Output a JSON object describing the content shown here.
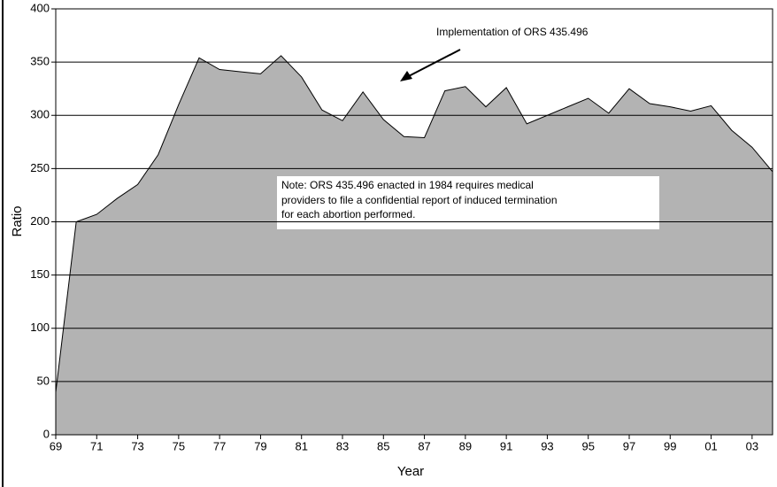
{
  "chart_data": {
    "type": "area",
    "categories": [
      "69",
      null,
      "71",
      null,
      "73",
      null,
      "75",
      null,
      "77",
      null,
      "79",
      null,
      "81",
      null,
      "83",
      null,
      "85",
      null,
      "87",
      null,
      "89",
      null,
      "91",
      null,
      "93",
      null,
      "95",
      null,
      "97",
      null,
      "99",
      null,
      "01",
      null,
      "03",
      null
    ],
    "values": [
      40,
      200,
      207,
      222,
      235,
      263,
      310,
      354,
      343,
      341,
      339,
      356,
      336,
      305,
      295,
      322,
      296,
      280,
      279,
      323,
      327,
      308,
      326,
      292,
      300,
      308,
      316,
      302,
      325,
      311,
      308,
      304,
      309,
      286,
      270,
      247
    ],
    "color": "#b3b3b3",
    "ylim": [
      0,
      400
    ],
    "yticks": [
      0,
      50,
      100,
      150,
      200,
      250,
      300,
      350,
      400
    ],
    "grid": true,
    "xlabel": "Year",
    "ylabel": "Ratio",
    "annotation": "Implementation of ORS 435.496",
    "note": [
      "Note:  ORS 435.496 enacted in 1984 requires medical",
      "providers to file a confidential report of induced termination",
      " for each abortion performed."
    ]
  }
}
